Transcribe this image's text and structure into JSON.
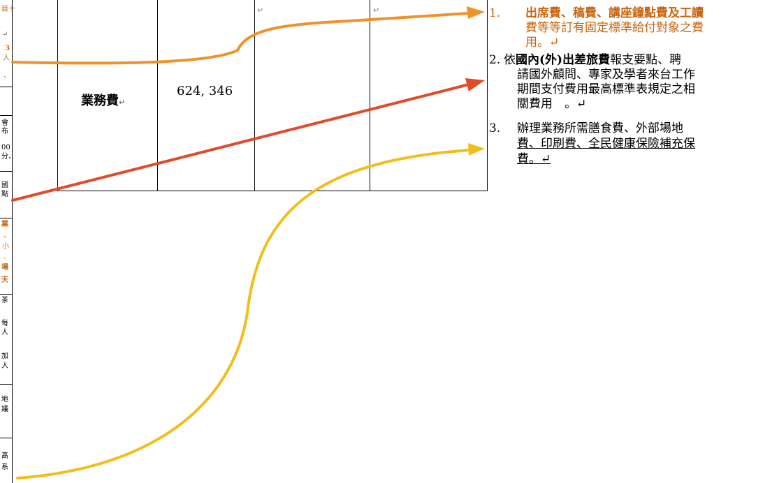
{
  "table": {
    "category": "業務費",
    "amount": "624, 346",
    "para_mark": "↵"
  },
  "notes": [
    {
      "number": "1.",
      "lines": [
        "出席費、稿費、講座鐘點費及工讀",
        "費等等訂有固定標準給付對象之費",
        "用。↵"
      ]
    },
    {
      "number": "2.",
      "line1_parts": [
        "依",
        "國內(外)出差旅費",
        "報支要點、聘"
      ],
      "lines": [
        "請國外顧問、專家及學者來台工作",
        "期間支付費用最高標準表規定之相",
        "關費用　。↵"
      ]
    },
    {
      "number": "3.",
      "lines": [
        "辦理業務所需膳食費、外部場地",
        "費、印刷費、全民健康保險補充保",
        "費。↵"
      ]
    }
  ],
  "left_edge_fragments": [
    "目十",
    "↵",
    "3",
    "人",
    "、",
    "會",
    "布",
    "00",
    "分、",
    "國",
    "點",
    "業",
    "、",
    "小",
    "-",
    "場",
    "天",
    "茶",
    "每",
    "人",
    "加",
    "人",
    "地",
    "議",
    "高",
    "系"
  ],
  "colors": {
    "orange_arrow": "#f0922a",
    "red_arrow": "#e14b2a",
    "yellow_arrow": "#f2be1c",
    "note_orange": "#c8650f"
  }
}
